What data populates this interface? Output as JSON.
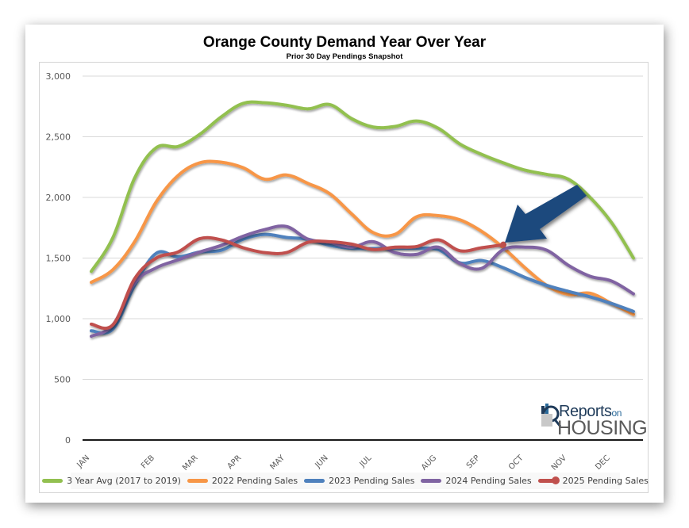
{
  "chart_data": {
    "type": "line",
    "title": "Orange County Demand Year Over Year",
    "subtitle": "Prior 30 Day Pendings Snapshot",
    "xlabel": "",
    "ylabel": "",
    "ylim": [
      0,
      3000
    ],
    "yticks": [
      0,
      500,
      1000,
      1500,
      2000,
      2500,
      3000
    ],
    "ytick_labels": [
      "0",
      "500",
      "1,000",
      "1,500",
      "2,000",
      "2,500",
      "3,000"
    ],
    "grid": true,
    "legend_position": "bottom",
    "x_points": 26,
    "x_tick_labels": [
      {
        "index": 0,
        "label": "JAN"
      },
      {
        "index": 3,
        "label": "FEB"
      },
      {
        "index": 5,
        "label": "MAR"
      },
      {
        "index": 7,
        "label": "APR"
      },
      {
        "index": 9,
        "label": "MAY"
      },
      {
        "index": 11,
        "label": "JUN"
      },
      {
        "index": 13,
        "label": "JUL"
      },
      {
        "index": 16,
        "label": "AUG"
      },
      {
        "index": 18,
        "label": "SEP"
      },
      {
        "index": 20,
        "label": "OCT"
      },
      {
        "index": 22,
        "label": "NOV"
      },
      {
        "index": 24,
        "label": "DEC"
      }
    ],
    "series": [
      {
        "name": "3 Year Avg (2017 to 2019)",
        "color": "#92C050",
        "values": [
          1390,
          1670,
          2160,
          2410,
          2420,
          2520,
          2665,
          2775,
          2780,
          2760,
          2730,
          2765,
          2650,
          2580,
          2585,
          2630,
          2570,
          2440,
          2355,
          2285,
          2225,
          2190,
          2150,
          2000,
          1790,
          1500
        ]
      },
      {
        "name": "2022 Pending Sales",
        "color": "#F79646",
        "values": [
          1300,
          1405,
          1635,
          1965,
          2180,
          2285,
          2290,
          2245,
          2150,
          2185,
          2115,
          2030,
          1865,
          1710,
          1695,
          1840,
          1850,
          1815,
          1720,
          1585,
          1420,
          1275,
          1200,
          1210,
          1125,
          1035
        ]
      },
      {
        "name": "2023 Pending Sales",
        "color": "#4F81BD",
        "values": [
          900,
          915,
          1275,
          1540,
          1510,
          1550,
          1565,
          1655,
          1695,
          1670,
          1655,
          1605,
          1580,
          1580,
          1580,
          1580,
          1570,
          1460,
          1480,
          1420,
          1340,
          1275,
          1225,
          1180,
          1125,
          1060
        ]
      },
      {
        "name": "2024 Pending Sales",
        "color": "#8064A2",
        "values": [
          855,
          950,
          1295,
          1420,
          1485,
          1550,
          1605,
          1680,
          1735,
          1760,
          1655,
          1630,
          1590,
          1635,
          1545,
          1530,
          1590,
          1455,
          1415,
          1570,
          1590,
          1565,
          1440,
          1350,
          1310,
          1205
        ]
      },
      {
        "name": "2025 Pending Sales",
        "color": "#C0504D",
        "marker_last": true,
        "values": [
          955,
          950,
          1330,
          1500,
          1550,
          1660,
          1650,
          1585,
          1545,
          1545,
          1630,
          1635,
          1615,
          1570,
          1590,
          1595,
          1650,
          1560,
          1585,
          1610
        ]
      }
    ],
    "annotations": [
      {
        "type": "arrow",
        "color": "#1F497D",
        "points_to": "2025 Pending Sales latest value"
      }
    ]
  },
  "logo": {
    "top_text": "Reports",
    "on_text": "on",
    "bottom_text": "HOUSING"
  }
}
